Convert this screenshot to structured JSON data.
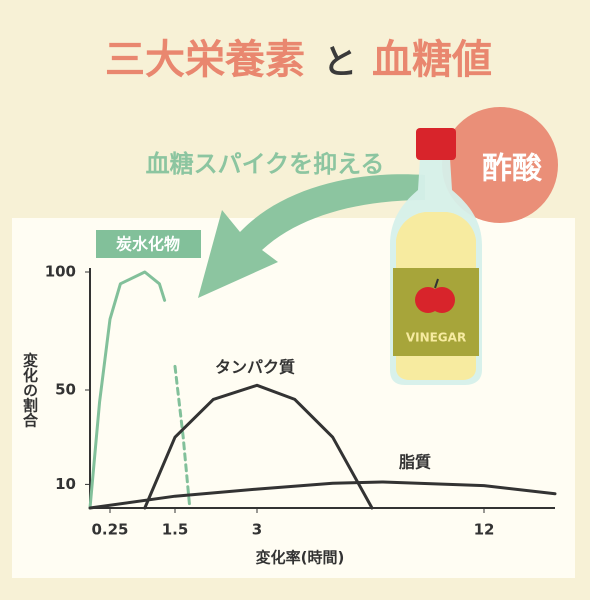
{
  "chart_data": {
    "type": "line",
    "title": [
      "三大栄養素",
      "と",
      "血糖値"
    ],
    "annotation": "血糖スパイクを抑える",
    "badge": "酢酸",
    "bottle_label": "VINEGAR",
    "xlabel": "変化率(時間)",
    "ylabel": "変化の割合",
    "xlim": [
      0,
      15
    ],
    "xticks": [
      0.25,
      1.5,
      3,
      12
    ],
    "ylim": [
      0,
      100
    ],
    "yticks": [
      10,
      50,
      100
    ],
    "series": [
      {
        "name": "炭水化物",
        "color": "#82c09a",
        "dashed_from": 6,
        "x": [
          0,
          0.12,
          0.25,
          0.45,
          0.92,
          1.2,
          1.3,
          1.5,
          1.65,
          1.77
        ],
        "values": [
          0,
          45,
          80,
          95,
          100,
          95,
          88,
          60,
          30,
          0
        ]
      },
      {
        "name": "タンパク質",
        "color": "#333333",
        "x": [
          0.92,
          1.5,
          2.2,
          3,
          4.5,
          6,
          7.56
        ],
        "values": [
          0,
          30,
          46,
          52,
          46,
          30,
          0
        ]
      },
      {
        "name": "脂質",
        "color": "#333333",
        "x": [
          0,
          1.5,
          3,
          6,
          8,
          12,
          15
        ],
        "values": [
          0,
          5,
          8,
          10.5,
          11,
          9.5,
          6
        ]
      }
    ]
  }
}
